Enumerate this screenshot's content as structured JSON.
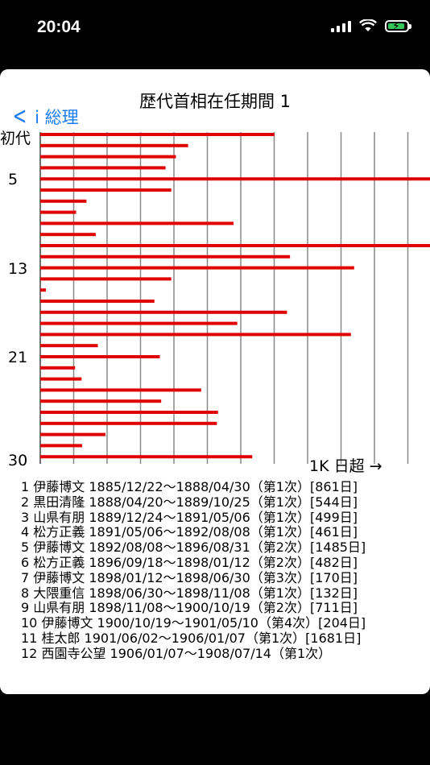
{
  "status_bar": {
    "time": "20:04",
    "colors": {
      "battery": "#34c759"
    }
  },
  "nav": {
    "back_label": "i 総理"
  },
  "chart_data": {
    "type": "bar",
    "orientation": "horizontal",
    "title": "歴代首相在任期間 1",
    "y_tick_labels": [
      {
        "label": "初代",
        "index": 1
      },
      {
        "label": "5",
        "index": 5
      },
      {
        "label": "13",
        "index": 13
      },
      {
        "label": "21",
        "index": 21
      },
      {
        "label": "30",
        "index": 30
      }
    ],
    "overflow_label": "1K 日超 →",
    "bar_color": "#e00000",
    "grid": true,
    "values": [
      861,
      544,
      499,
      461,
      1485,
      482,
      170,
      132,
      711,
      204,
      1681,
      919,
      1155,
      482,
      21,
      420,
      908,
      725,
      1143,
      212,
      440,
      128,
      152,
      592,
      445,
      654,
      650,
      240,
      154,
      780
    ]
  },
  "entries": [
    "1 伊藤博文 1885/12/22〜1888/04/30（第1次）[861日]",
    "2 黒田清隆 1888/04/20〜1889/10/25（第1次）[544日]",
    "3 山県有朋 1889/12/24〜1891/05/06（第1次）[499日]",
    "4 松方正義 1891/05/06〜1892/08/08（第1次）[461日]",
    "5 伊藤博文 1892/08/08〜1896/08/31（第2次）[1485日]",
    "6 松方正義 1896/09/18〜1898/01/12（第2次）[482日]",
    "7 伊藤博文 1898/01/12〜1898/06/30（第3次）[170日]",
    "8 大隈重信 1898/06/30〜1898/11/08（第1次）[132日]",
    "9 山県有朋 1898/11/08〜1900/10/19（第2次）[711日]",
    "10 伊藤博文 1900/10/19〜1901/05/10（第4次）[204日]",
    "11 桂太郎 1901/06/02〜1906/01/07（第1次）[1681日]",
    "12 西園寺公望 1906/01/07〜1908/07/14（第1次）"
  ]
}
